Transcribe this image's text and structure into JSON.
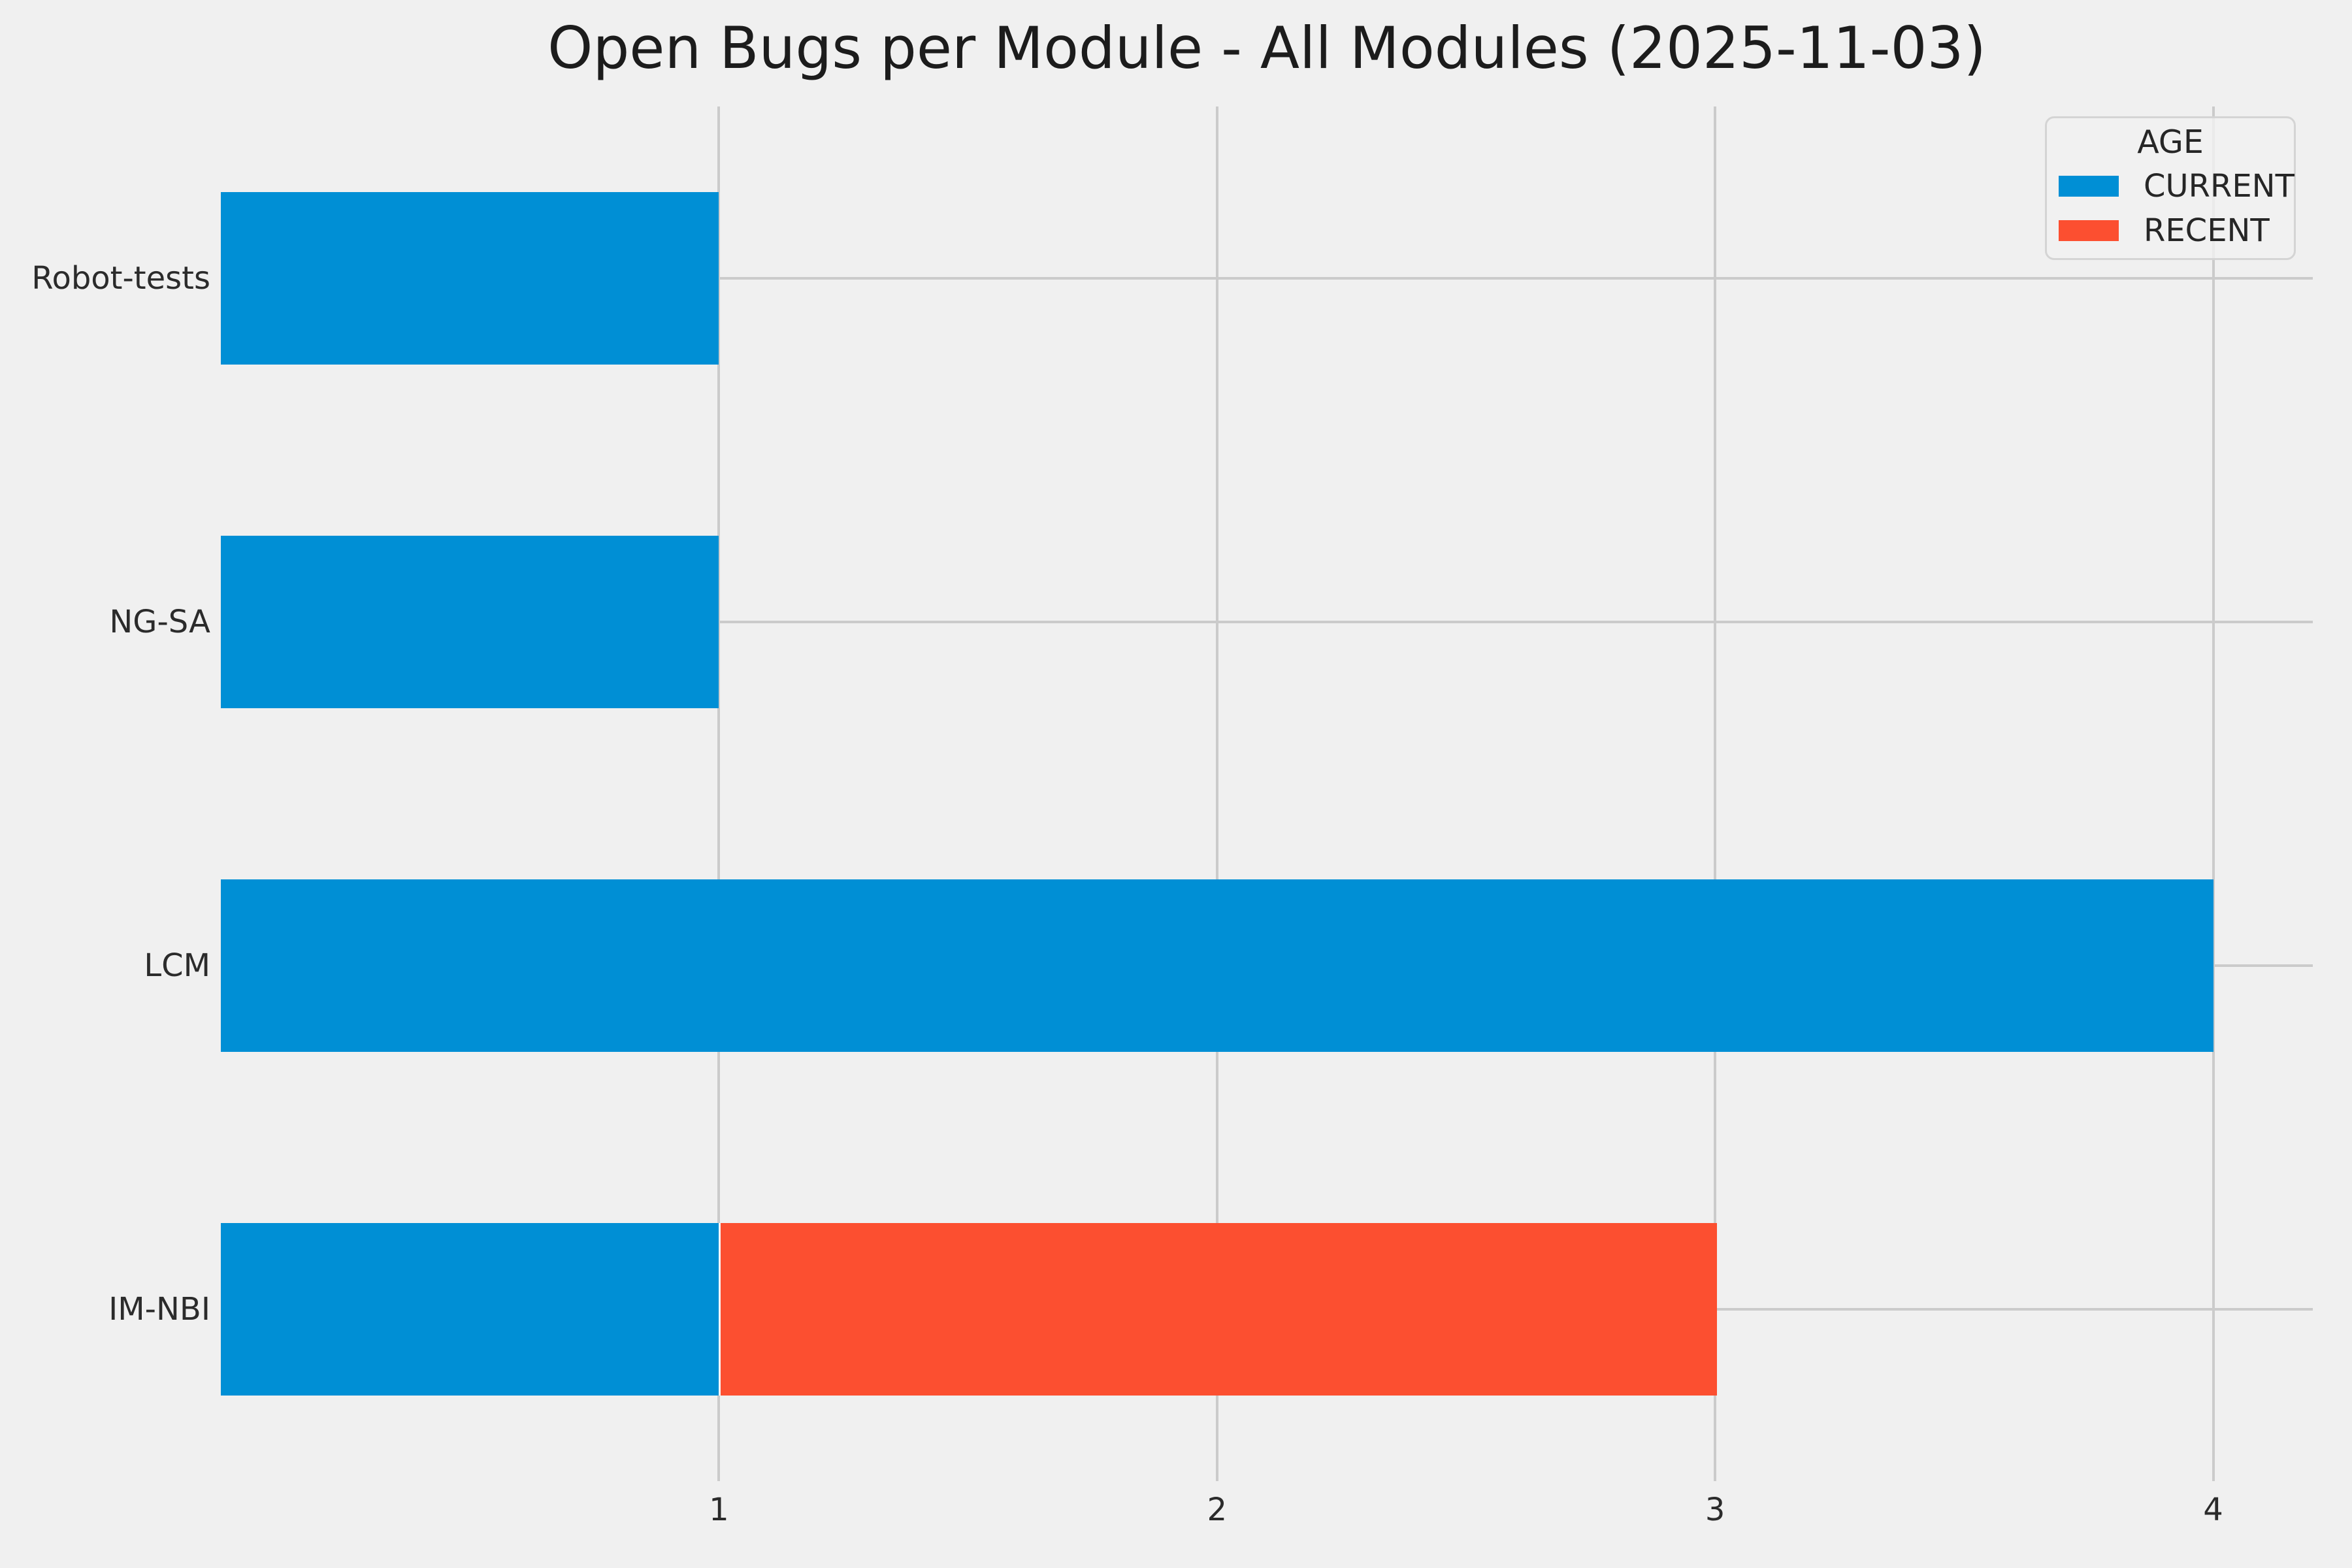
{
  "figure": {
    "background_color": "#f0f0f0",
    "grid_color": "#cbcbcb",
    "text_color": "#262626"
  },
  "chart_data": {
    "type": "bar",
    "orientation": "horizontal",
    "stacked": true,
    "title": "Open Bugs per Module - All Modules (2025-11-03)",
    "categories": [
      "Robot-tests",
      "NG-SA",
      "LCM",
      "IM-NBI"
    ],
    "series": [
      {
        "name": "CURRENT",
        "color": "#008fd5",
        "values": [
          1,
          1,
          4,
          1
        ]
      },
      {
        "name": "RECENT",
        "color": "#fc4f30",
        "values": [
          0,
          0,
          0,
          2
        ]
      }
    ],
    "totals": [
      1,
      1,
      4,
      3
    ],
    "legend": {
      "title": "AGE",
      "position": "upper right",
      "entries": [
        {
          "label": "CURRENT",
          "color": "#008fd5"
        },
        {
          "label": "RECENT",
          "color": "#fc4f30"
        }
      ]
    },
    "xlabel": "",
    "ylabel": "",
    "x_ticks": [
      "1",
      "2",
      "3",
      "4"
    ],
    "xlim": [
      0,
      4.2
    ],
    "grid": true,
    "axis_spines": false
  }
}
